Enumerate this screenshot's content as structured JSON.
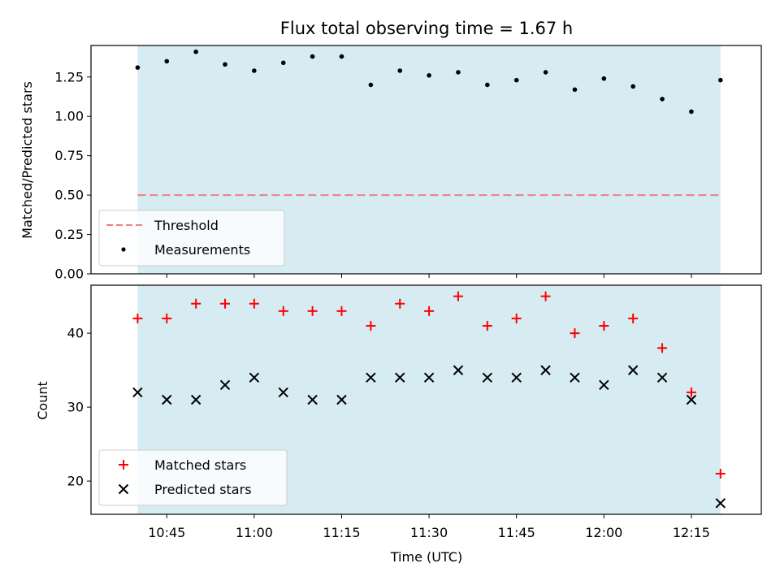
{
  "colors": {
    "band": "#add8e6",
    "threshold": "#f08080",
    "measurement": "#000000",
    "matched": "#ff0000",
    "predicted": "#000000",
    "axis": "#000000"
  },
  "time_ticks": [
    "10:45",
    "11:00",
    "11:15",
    "11:30",
    "11:45",
    "12:00",
    "12:15"
  ],
  "chart_data": [
    {
      "type": "scatter",
      "title": "Flux total observing time = 1.67 h",
      "xlabel": "",
      "ylabel": "Matched/Predicted stars",
      "ylim": [
        0,
        1.45
      ],
      "y_ticks": [
        "0.00",
        "0.25",
        "0.50",
        "0.75",
        "1.00",
        "1.25"
      ],
      "x_unit": "time (UTC)",
      "xlim": [
        "10:32",
        "12:27"
      ],
      "shaded_interval": [
        "10:40",
        "12:20"
      ],
      "lines": [
        {
          "name": "Threshold",
          "y": 0.5,
          "style": "dashed"
        }
      ],
      "series": [
        {
          "name": "Measurements",
          "marker": "dot",
          "x": [
            "10:40",
            "10:45",
            "10:50",
            "10:55",
            "11:00",
            "11:05",
            "11:10",
            "11:15",
            "11:20",
            "11:25",
            "11:30",
            "11:35",
            "11:40",
            "11:45",
            "11:50",
            "11:55",
            "12:00",
            "12:05",
            "12:10",
            "12:15",
            "12:20"
          ],
          "y": [
            1.31,
            1.35,
            1.41,
            1.33,
            1.29,
            1.34,
            1.38,
            1.38,
            1.2,
            1.29,
            1.26,
            1.28,
            1.2,
            1.23,
            1.28,
            1.17,
            1.24,
            1.19,
            1.11,
            1.03,
            1.23
          ]
        }
      ],
      "legend": "lower-left",
      "grid": false
    },
    {
      "type": "scatter",
      "title": "",
      "xlabel": "Time (UTC)",
      "ylabel": "Count",
      "ylim": [
        15.5,
        46.5
      ],
      "y_ticks": [
        "20",
        "30",
        "40"
      ],
      "x_unit": "time (UTC)",
      "xlim": [
        "10:32",
        "12:27"
      ],
      "shaded_interval": [
        "10:40",
        "12:20"
      ],
      "series": [
        {
          "name": "Matched stars",
          "marker": "plus",
          "x": [
            "10:40",
            "10:45",
            "10:50",
            "10:55",
            "11:00",
            "11:05",
            "11:10",
            "11:15",
            "11:20",
            "11:25",
            "11:30",
            "11:35",
            "11:40",
            "11:45",
            "11:50",
            "11:55",
            "12:00",
            "12:05",
            "12:10",
            "12:15",
            "12:20"
          ],
          "y": [
            42,
            42,
            44,
            44,
            44,
            43,
            43,
            43,
            41,
            44,
            43,
            45,
            41,
            42,
            45,
            40,
            41,
            42,
            38,
            32,
            21
          ]
        },
        {
          "name": "Predicted stars",
          "marker": "x",
          "x": [
            "10:40",
            "10:45",
            "10:50",
            "10:55",
            "11:00",
            "11:05",
            "11:10",
            "11:15",
            "11:20",
            "11:25",
            "11:30",
            "11:35",
            "11:40",
            "11:45",
            "11:50",
            "11:55",
            "12:00",
            "12:05",
            "12:10",
            "12:15",
            "12:20"
          ],
          "y": [
            32,
            31,
            31,
            33,
            34,
            32,
            31,
            31,
            34,
            34,
            34,
            35,
            34,
            34,
            35,
            34,
            33,
            35,
            34,
            31,
            17
          ]
        }
      ],
      "legend": "lower-left",
      "grid": false
    }
  ]
}
